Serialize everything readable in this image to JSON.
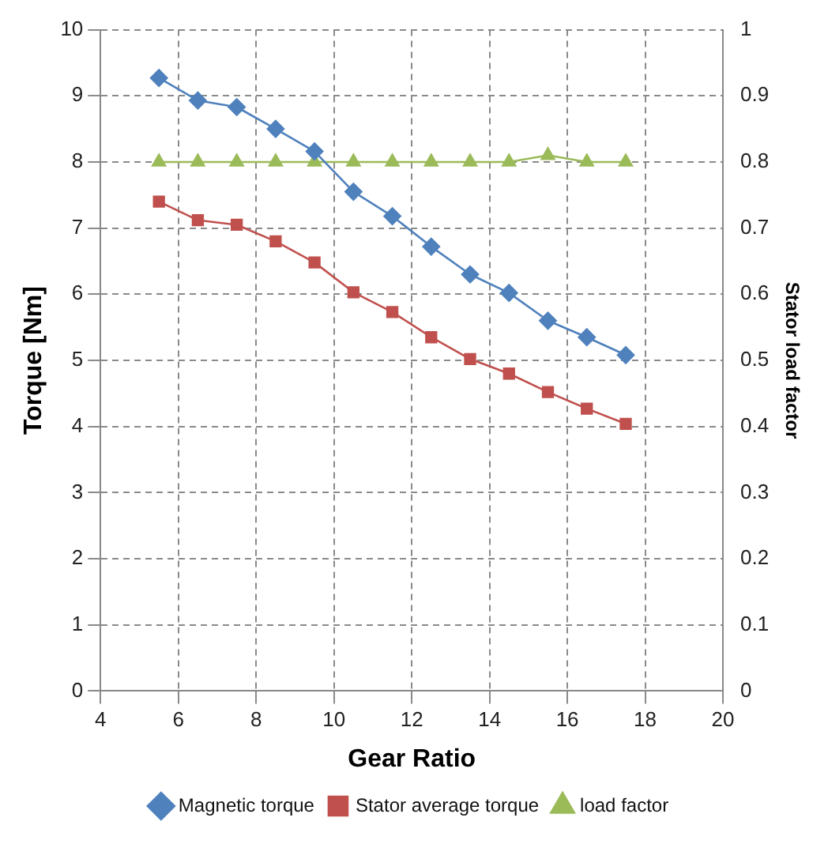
{
  "chart_data": {
    "type": "line",
    "xlabel": "Gear Ratio",
    "ylabel": "Torque [Nm]",
    "y2label": "Stator load factor",
    "x": [
      5.5,
      6.5,
      7.5,
      8.5,
      9.5,
      10.5,
      11.5,
      12.5,
      13.5,
      14.5,
      15.5,
      16.5,
      17.5
    ],
    "series": [
      {
        "name": "Magnetic torque",
        "color": "#4f81bd",
        "marker": "diamond",
        "values": [
          9.27,
          8.93,
          8.83,
          8.5,
          8.16,
          7.55,
          7.18,
          6.72,
          6.3,
          6.02,
          5.6,
          5.35,
          5.08
        ]
      },
      {
        "name": "Stator average torque",
        "color": "#c0504d",
        "marker": "square",
        "values": [
          7.4,
          7.12,
          7.05,
          6.8,
          6.48,
          6.03,
          5.73,
          5.35,
          5.02,
          4.8,
          4.52,
          4.27,
          4.04
        ]
      },
      {
        "name": "load factor",
        "color": "#9bbb59",
        "marker": "triangle",
        "axis": "y2",
        "values": [
          0.8,
          0.8,
          0.8,
          0.8,
          0.8,
          0.8,
          0.8,
          0.8,
          0.8,
          0.8,
          0.81,
          0.8,
          0.8
        ]
      }
    ],
    "xlim": [
      4,
      20
    ],
    "xticks": [
      4,
      6,
      8,
      10,
      12,
      14,
      16,
      18,
      20
    ],
    "ylim": [
      0,
      10
    ],
    "yticks": [
      0,
      1,
      2,
      3,
      4,
      5,
      6,
      7,
      8,
      9,
      10
    ],
    "y2lim": [
      0,
      1
    ],
    "y2ticks": [
      0,
      0.1,
      0.2,
      0.3,
      0.4,
      0.5,
      0.6,
      0.7,
      0.8,
      0.9,
      1
    ],
    "grid": true,
    "legend": "bottom",
    "line_style": "solid"
  }
}
